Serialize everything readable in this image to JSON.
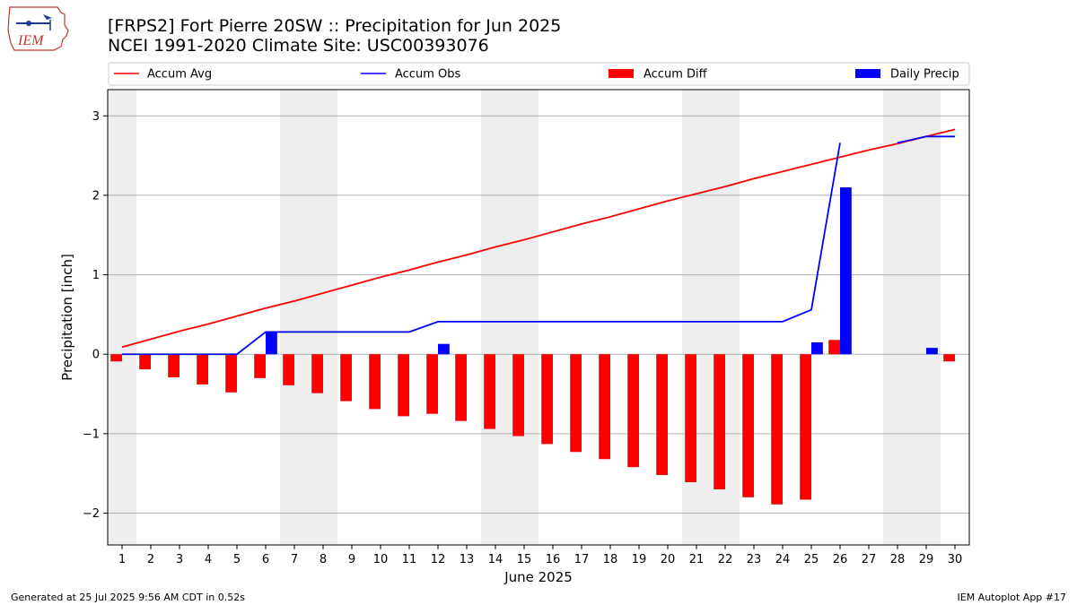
{
  "header": {
    "title_line1": "[FRPS2] Fort Pierre 20SW :: Precipitation for Jun 2025",
    "title_line2": "NCEI 1991-2020 Climate Site: USC00393076",
    "logo_text": "IEM"
  },
  "footer": {
    "left": "Generated at 25 Jul 2025 9:56 AM CDT in 0.52s",
    "right": "IEM Autoplot App #17"
  },
  "colors": {
    "avg": "#ff0000",
    "obs": "#0000ff",
    "diff": "#ff0000",
    "daily": "#0000ff",
    "weekend_shade": "#eeeeee",
    "grid": "#b0b0b0"
  },
  "chart_data": {
    "type": "bar",
    "xlabel": "June 2025",
    "ylabel": "Precipitation [inch]",
    "ylim": [
      -2.4,
      3.33
    ],
    "yticks": [
      -2,
      -1,
      0,
      1,
      2,
      3
    ],
    "ytick_labels": [
      "−2",
      "−1",
      "0",
      "1",
      "2",
      "3"
    ],
    "grid": "horizontal",
    "legend_position": "top",
    "legend": [
      "Accum Avg",
      "Accum Obs",
      "Accum Diff",
      "Daily Precip"
    ],
    "days": [
      1,
      2,
      3,
      4,
      5,
      6,
      7,
      8,
      9,
      10,
      11,
      12,
      13,
      14,
      15,
      16,
      17,
      18,
      19,
      20,
      21,
      22,
      23,
      24,
      25,
      26,
      27,
      28,
      29,
      30
    ],
    "weekend_day_ranges": [
      [
        0.5,
        1.5
      ],
      [
        6.5,
        8.5
      ],
      [
        13.5,
        15.5
      ],
      [
        20.5,
        22.5
      ],
      [
        27.5,
        29.5
      ]
    ],
    "series": [
      {
        "name": "Accum Avg",
        "kind": "line",
        "values": [
          0.09,
          0.19,
          0.29,
          0.38,
          0.48,
          0.58,
          0.67,
          0.77,
          0.87,
          0.97,
          1.06,
          1.16,
          1.25,
          1.35,
          1.44,
          1.54,
          1.64,
          1.73,
          1.83,
          1.93,
          2.02,
          2.11,
          2.21,
          2.3,
          2.39,
          2.48,
          2.57,
          2.65,
          2.74,
          2.83
        ]
      },
      {
        "name": "Accum Obs",
        "kind": "line",
        "values": [
          0,
          0,
          0,
          0,
          0,
          0.28,
          0.28,
          0.28,
          0.28,
          0.28,
          0.28,
          0.41,
          0.41,
          0.41,
          0.41,
          0.41,
          0.41,
          0.41,
          0.41,
          0.41,
          0.41,
          0.41,
          0.41,
          0.41,
          0.56,
          2.66,
          null,
          2.66,
          2.74,
          2.74
        ]
      },
      {
        "name": "Accum Diff",
        "kind": "bar",
        "values": [
          -0.09,
          -0.19,
          -0.29,
          -0.38,
          -0.48,
          -0.3,
          -0.39,
          -0.49,
          -0.59,
          -0.69,
          -0.78,
          -0.75,
          -0.84,
          -0.94,
          -1.03,
          -1.13,
          -1.23,
          -1.32,
          -1.42,
          -1.52,
          -1.61,
          -1.7,
          -1.8,
          -1.89,
          -1.83,
          0.18,
          null,
          null,
          null,
          -0.09
        ]
      },
      {
        "name": "Daily Precip",
        "kind": "bar",
        "values": [
          0,
          0,
          0,
          0,
          0,
          0.28,
          0,
          0,
          0,
          0,
          0,
          0.13,
          0,
          0,
          0,
          0,
          0,
          0,
          0,
          0,
          0,
          0,
          0,
          0,
          0.15,
          2.1,
          0,
          0,
          0.08,
          0
        ]
      }
    ]
  }
}
